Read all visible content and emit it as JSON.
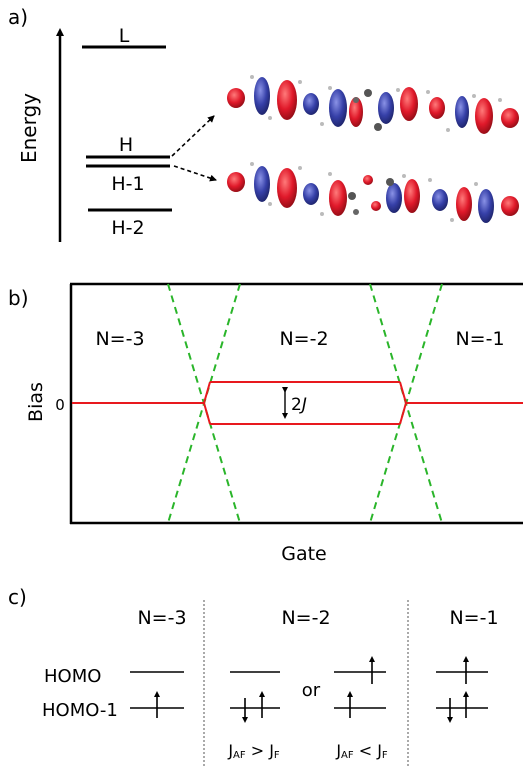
{
  "panel_a": {
    "label": "a)",
    "axis_label": "Energy",
    "levels": {
      "l": "L",
      "h": "H",
      "h1": "H-1",
      "h2": "H-2"
    }
  },
  "panel_b": {
    "label": "b)",
    "ylabel": "Bias",
    "xlabel": "Gate",
    "zero_tick": "0",
    "regions": {
      "left": "N=-3",
      "middle": "N=-2",
      "right": "N=-1"
    },
    "splitting_label_num": "2",
    "splitting_label_var": "J",
    "colors": {
      "diamond": "#2ab52a",
      "level": "#e8191e"
    }
  },
  "panel_c": {
    "label": "c)",
    "row_labels": {
      "homo": "HOMO",
      "homo1": "HOMO-1"
    },
    "columns": {
      "left": "N=-3",
      "middle": "N=-2",
      "right": "N=-1"
    },
    "or_text": "or",
    "cond_af_gt": {
      "j1": "J",
      "s1": "AF",
      "op": " > ",
      "j2": "J",
      "s2": "F"
    },
    "cond_af_lt": {
      "j1": "J",
      "s1": "AF",
      "op": " < ",
      "j2": "J",
      "s2": "F"
    }
  },
  "colors": {
    "orbital_positive": "#e0192a",
    "orbital_negative": "#3640a8"
  }
}
